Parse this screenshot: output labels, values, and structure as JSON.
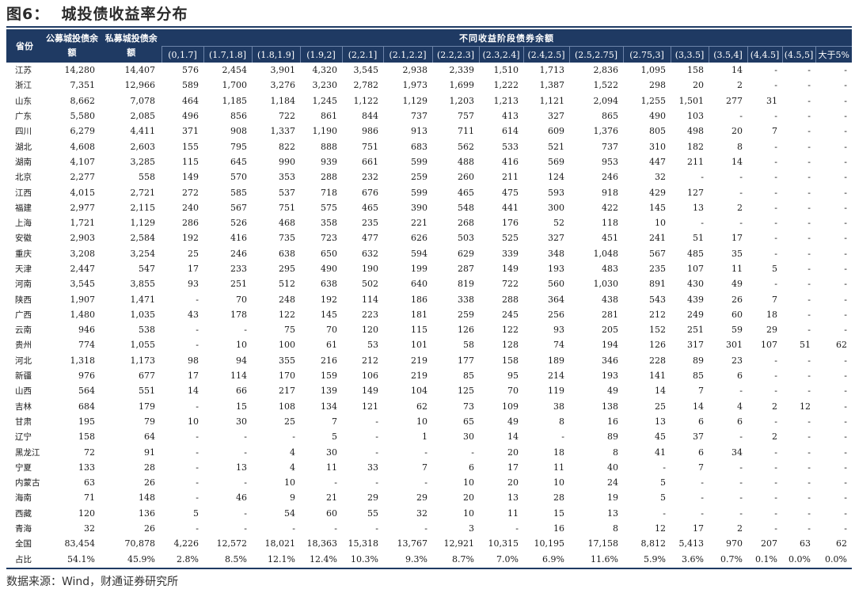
{
  "title": "图6：  城投债收益率分布",
  "source": "数据来源：Wind，财通证券研究所",
  "header": {
    "province": "省份",
    "public_balance": "公募城投债余额",
    "private_balance": "私募城投债余额",
    "group": "不同收益阶段债券余额",
    "ranges": [
      "(0,1.7]",
      "(1.7,1.8]",
      "(1.8,1.9]",
      "(1.9,2]",
      "(2,2.1]",
      "(2.1,2.2]",
      "(2.2,2.3]",
      "(2.3,2.4]",
      "(2.4,2.5]",
      "(2.5,2.75]",
      "(2.75,3]",
      "(3,3.5]",
      "(3.5,4]",
      "(4,4.5]",
      "(4.5,5]",
      "大于5%"
    ]
  },
  "rows": [
    [
      "江苏",
      "14,280",
      "14,407",
      "576",
      "2,454",
      "3,901",
      "4,320",
      "3,545",
      "2,938",
      "2,339",
      "1,510",
      "1,713",
      "2,836",
      "1,095",
      "158",
      "14",
      "-",
      "-",
      "-"
    ],
    [
      "浙江",
      "7,351",
      "12,966",
      "589",
      "1,700",
      "3,276",
      "3,230",
      "2,782",
      "1,973",
      "1,699",
      "1,222",
      "1,387",
      "1,522",
      "298",
      "20",
      "2",
      "-",
      "-",
      "-"
    ],
    [
      "山东",
      "8,662",
      "7,078",
      "464",
      "1,185",
      "1,184",
      "1,245",
      "1,122",
      "1,129",
      "1,203",
      "1,213",
      "1,121",
      "2,094",
      "1,255",
      "1,501",
      "277",
      "31",
      "-",
      "-"
    ],
    [
      "广东",
      "5,580",
      "2,085",
      "496",
      "856",
      "722",
      "861",
      "844",
      "737",
      "757",
      "413",
      "327",
      "865",
      "490",
      "103",
      "-",
      "-",
      "-",
      "-"
    ],
    [
      "四川",
      "6,279",
      "4,411",
      "371",
      "908",
      "1,337",
      "1,190",
      "986",
      "913",
      "711",
      "614",
      "609",
      "1,376",
      "805",
      "498",
      "20",
      "7",
      "-",
      "-"
    ],
    [
      "湖北",
      "4,608",
      "2,603",
      "155",
      "795",
      "822",
      "888",
      "751",
      "683",
      "562",
      "533",
      "521",
      "737",
      "310",
      "182",
      "8",
      "-",
      "-",
      "-"
    ],
    [
      "湖南",
      "4,107",
      "3,285",
      "115",
      "645",
      "990",
      "939",
      "661",
      "599",
      "488",
      "416",
      "569",
      "953",
      "447",
      "211",
      "14",
      "-",
      "-",
      "-"
    ],
    [
      "北京",
      "2,277",
      "558",
      "149",
      "570",
      "353",
      "288",
      "232",
      "259",
      "260",
      "211",
      "124",
      "246",
      "32",
      "-",
      "-",
      "-",
      "-",
      "-"
    ],
    [
      "江西",
      "4,015",
      "2,721",
      "272",
      "585",
      "537",
      "718",
      "676",
      "599",
      "465",
      "475",
      "593",
      "918",
      "429",
      "127",
      "-",
      "-",
      "-",
      "-"
    ],
    [
      "福建",
      "2,977",
      "2,115",
      "240",
      "567",
      "751",
      "575",
      "465",
      "390",
      "548",
      "441",
      "300",
      "422",
      "145",
      "13",
      "2",
      "-",
      "-",
      "-"
    ],
    [
      "上海",
      "1,721",
      "1,129",
      "286",
      "526",
      "468",
      "358",
      "235",
      "221",
      "268",
      "176",
      "52",
      "118",
      "10",
      "-",
      "-",
      "-",
      "-",
      "-"
    ],
    [
      "安徽",
      "2,903",
      "2,584",
      "192",
      "416",
      "735",
      "723",
      "477",
      "626",
      "503",
      "525",
      "327",
      "451",
      "241",
      "51",
      "17",
      "-",
      "-",
      "-"
    ],
    [
      "重庆",
      "3,208",
      "3,254",
      "25",
      "246",
      "638",
      "650",
      "632",
      "594",
      "629",
      "339",
      "348",
      "1,048",
      "567",
      "485",
      "35",
      "-",
      "-",
      "-"
    ],
    [
      "天津",
      "2,447",
      "547",
      "17",
      "233",
      "295",
      "490",
      "190",
      "199",
      "287",
      "149",
      "193",
      "483",
      "235",
      "107",
      "11",
      "5",
      "-",
      "-"
    ],
    [
      "河南",
      "3,545",
      "3,855",
      "93",
      "251",
      "512",
      "638",
      "502",
      "640",
      "819",
      "722",
      "560",
      "1,030",
      "891",
      "430",
      "49",
      "-",
      "-",
      "-"
    ],
    [
      "陕西",
      "1,907",
      "1,471",
      "-",
      "70",
      "248",
      "192",
      "114",
      "186",
      "338",
      "288",
      "364",
      "438",
      "543",
      "439",
      "26",
      "7",
      "-",
      "-"
    ],
    [
      "广西",
      "1,480",
      "1,035",
      "43",
      "178",
      "122",
      "145",
      "223",
      "181",
      "259",
      "245",
      "256",
      "281",
      "212",
      "249",
      "60",
      "18",
      "-",
      "-"
    ],
    [
      "云南",
      "946",
      "538",
      "-",
      "-",
      "75",
      "70",
      "120",
      "115",
      "126",
      "122",
      "93",
      "205",
      "152",
      "251",
      "59",
      "29",
      "-",
      "-"
    ],
    [
      "贵州",
      "774",
      "1,055",
      "-",
      "10",
      "100",
      "61",
      "53",
      "101",
      "58",
      "128",
      "74",
      "194",
      "126",
      "317",
      "301",
      "107",
      "51",
      "62"
    ],
    [
      "河北",
      "1,318",
      "1,173",
      "98",
      "94",
      "355",
      "216",
      "212",
      "219",
      "177",
      "158",
      "189",
      "346",
      "228",
      "89",
      "23",
      "-",
      "-",
      "-"
    ],
    [
      "新疆",
      "976",
      "677",
      "17",
      "114",
      "170",
      "159",
      "106",
      "219",
      "85",
      "95",
      "214",
      "193",
      "141",
      "85",
      "6",
      "-",
      "-",
      "-"
    ],
    [
      "山西",
      "564",
      "551",
      "14",
      "66",
      "217",
      "139",
      "149",
      "104",
      "125",
      "70",
      "119",
      "49",
      "14",
      "7",
      "-",
      "-",
      "-",
      "-"
    ],
    [
      "吉林",
      "684",
      "179",
      "-",
      "15",
      "108",
      "134",
      "121",
      "62",
      "73",
      "109",
      "38",
      "138",
      "25",
      "14",
      "4",
      "2",
      "12",
      "-"
    ],
    [
      "甘肃",
      "195",
      "79",
      "10",
      "30",
      "25",
      "7",
      "-",
      "10",
      "65",
      "49",
      "8",
      "16",
      "13",
      "6",
      "6",
      "-",
      "-",
      "-"
    ],
    [
      "辽宁",
      "158",
      "64",
      "-",
      "-",
      "-",
      "5",
      "-",
      "1",
      "30",
      "14",
      "-",
      "89",
      "45",
      "37",
      "-",
      "2",
      "-",
      "-"
    ],
    [
      "黑龙江",
      "72",
      "91",
      "-",
      "-",
      "4",
      "30",
      "-",
      "-",
      "-",
      "20",
      "18",
      "8",
      "41",
      "6",
      "34",
      "-",
      "-",
      "-"
    ],
    [
      "宁夏",
      "133",
      "28",
      "-",
      "13",
      "4",
      "11",
      "33",
      "7",
      "6",
      "17",
      "11",
      "40",
      "-",
      "7",
      "-",
      "-",
      "-",
      "-"
    ],
    [
      "内蒙古",
      "63",
      "26",
      "-",
      "-",
      "10",
      "-",
      "-",
      "-",
      "10",
      "20",
      "10",
      "24",
      "5",
      "-",
      "-",
      "-",
      "-",
      "-"
    ],
    [
      "海南",
      "71",
      "148",
      "-",
      "46",
      "9",
      "21",
      "29",
      "29",
      "20",
      "13",
      "28",
      "19",
      "5",
      "-",
      "-",
      "-",
      "-",
      "-"
    ],
    [
      "西藏",
      "120",
      "136",
      "5",
      "-",
      "54",
      "60",
      "55",
      "32",
      "10",
      "11",
      "15",
      "13",
      "-",
      "-",
      "-",
      "-",
      "-",
      "-"
    ],
    [
      "青海",
      "32",
      "26",
      "-",
      "-",
      "-",
      "-",
      "-",
      "-",
      "3",
      "-",
      "16",
      "8",
      "12",
      "17",
      "2",
      "-",
      "-",
      "-"
    ],
    [
      "全国",
      "83,454",
      "70,878",
      "4,226",
      "12,572",
      "18,021",
      "18,363",
      "15,318",
      "13,767",
      "12,921",
      "10,315",
      "10,195",
      "17,158",
      "8,812",
      "5,413",
      "970",
      "207",
      "63",
      "62"
    ],
    [
      "占比",
      "54.1%",
      "45.9%",
      "2.8%",
      "8.5%",
      "12.1%",
      "12.4%",
      "10.3%",
      "9.3%",
      "8.7%",
      "7.0%",
      "6.9%",
      "11.6%",
      "5.9%",
      "3.6%",
      "0.7%",
      "0.1%",
      "0.0%",
      "0.0%"
    ]
  ]
}
